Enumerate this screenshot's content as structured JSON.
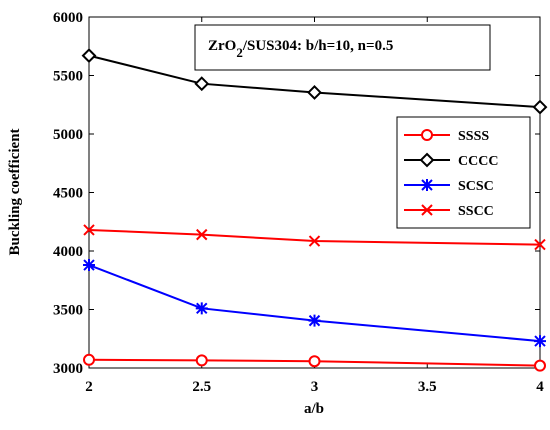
{
  "chart_data": {
    "type": "line",
    "x": [
      2,
      2.5,
      3,
      4
    ],
    "xlabel": "a/b",
    "ylabel": "Buckling coefficient",
    "xlim": [
      2,
      4
    ],
    "ylim": [
      3000,
      6000
    ],
    "xticks": [
      "2",
      "2.5",
      "3",
      "3.5",
      "4"
    ],
    "yticks": [
      "3000",
      "3500",
      "4000",
      "4500",
      "5000",
      "5500",
      "6000"
    ],
    "grid": false,
    "legend_position": "right",
    "annotation": {
      "prefix": "ZrO",
      "subscript": "2",
      "suffix": "/SUS304: b/h=10, n=0.5"
    },
    "series": [
      {
        "name": "SSSS",
        "color": "#ff0000",
        "marker": "circle",
        "values": [
          3070,
          3065,
          3058,
          3020
        ]
      },
      {
        "name": "CCCC",
        "color": "#000000",
        "marker": "diamond",
        "values": [
          5670,
          5430,
          5355,
          5230
        ]
      },
      {
        "name": "SCSC",
        "color": "#0000ff",
        "marker": "asterisk",
        "values": [
          3880,
          3510,
          3405,
          3230
        ]
      },
      {
        "name": "SSCC",
        "color": "#ff0000",
        "marker": "x",
        "values": [
          4180,
          4140,
          4085,
          4055
        ]
      }
    ]
  }
}
